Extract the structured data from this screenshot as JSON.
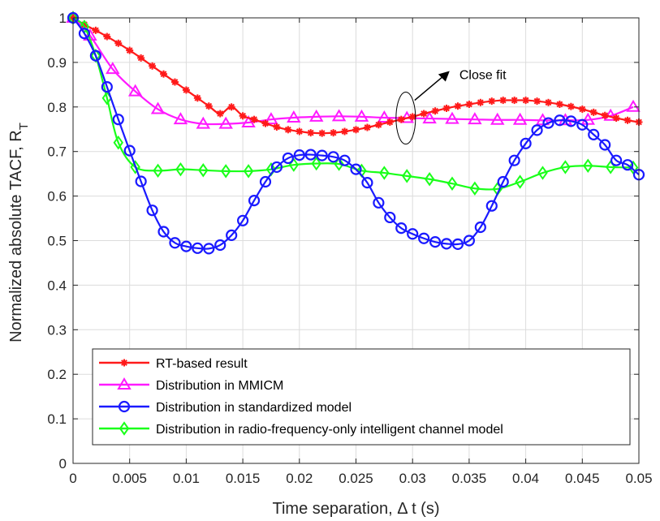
{
  "chart_data": {
    "type": "line",
    "title": "",
    "xlabel": "Time separation, Δ t (s)",
    "ylabel": "Normalized absolute TACF, R",
    "ylabel_subscript": "T",
    "xlim": [
      0,
      0.05
    ],
    "ylim": [
      0,
      1
    ],
    "xticks": [
      0,
      0.005,
      0.01,
      0.015,
      0.02,
      0.025,
      0.03,
      0.035,
      0.04,
      0.045,
      0.05
    ],
    "xtick_labels": [
      "0",
      "0.005",
      "0.01",
      "0.015",
      "0.02",
      "0.025",
      "0.03",
      "0.035",
      "0.04",
      "0.045",
      "0.05"
    ],
    "yticks": [
      0,
      0.1,
      0.2,
      0.3,
      0.4,
      0.5,
      0.6,
      0.7,
      0.8,
      0.9,
      1
    ],
    "ytick_labels": [
      "0",
      "0.1",
      "0.2",
      "0.3",
      "0.4",
      "0.5",
      "0.6",
      "0.7",
      "0.8",
      "0.9",
      "1"
    ],
    "grid": true,
    "legend_position": "bottom-left",
    "annotation": {
      "text": "Close fit",
      "x": 0.0294,
      "y": 0.775
    },
    "series": [
      {
        "name": "RT-based result",
        "color": "#ff1a1a",
        "marker": "asterisk",
        "x": [
          0,
          0.001,
          0.002,
          0.003,
          0.004,
          0.005,
          0.006,
          0.007,
          0.008,
          0.009,
          0.01,
          0.011,
          0.012,
          0.013,
          0.014,
          0.015,
          0.016,
          0.017,
          0.018,
          0.019,
          0.02,
          0.021,
          0.022,
          0.023,
          0.024,
          0.025,
          0.026,
          0.027,
          0.028,
          0.029,
          0.03,
          0.031,
          0.032,
          0.033,
          0.034,
          0.035,
          0.036,
          0.037,
          0.038,
          0.039,
          0.04,
          0.041,
          0.042,
          0.043,
          0.044,
          0.045,
          0.046,
          0.047,
          0.048,
          0.049,
          0.05
        ],
        "values": [
          1.0,
          0.985,
          0.972,
          0.958,
          0.943,
          0.927,
          0.91,
          0.892,
          0.874,
          0.856,
          0.838,
          0.82,
          0.802,
          0.785,
          0.8,
          0.78,
          0.772,
          0.763,
          0.755,
          0.749,
          0.745,
          0.742,
          0.741,
          0.742,
          0.745,
          0.749,
          0.754,
          0.76,
          0.766,
          0.772,
          0.778,
          0.785,
          0.791,
          0.797,
          0.802,
          0.806,
          0.81,
          0.813,
          0.815,
          0.815,
          0.815,
          0.813,
          0.81,
          0.806,
          0.801,
          0.795,
          0.788,
          0.781,
          0.775,
          0.77,
          0.766
        ]
      },
      {
        "name": "Distribution in MMICM",
        "color": "#ff1aff",
        "marker": "triangle",
        "x": [
          0,
          0.0015,
          0.0035,
          0.0055,
          0.0075,
          0.0095,
          0.0115,
          0.0135,
          0.0155,
          0.0175,
          0.0195,
          0.0215,
          0.0235,
          0.0255,
          0.0275,
          0.0295,
          0.0315,
          0.0335,
          0.0355,
          0.0375,
          0.0395,
          0.0415,
          0.0435,
          0.0455,
          0.0475,
          0.0495
        ],
        "values": [
          1.0,
          0.96,
          0.885,
          0.835,
          0.795,
          0.772,
          0.762,
          0.762,
          0.765,
          0.772,
          0.776,
          0.778,
          0.779,
          0.778,
          0.776,
          0.775,
          0.774,
          0.773,
          0.772,
          0.771,
          0.771,
          0.77,
          0.77,
          0.771,
          0.78,
          0.8
        ]
      },
      {
        "name": "Distribution in standardized model",
        "color": "#1a1aff",
        "marker": "circle",
        "x": [
          0,
          0.001,
          0.002,
          0.003,
          0.004,
          0.005,
          0.006,
          0.007,
          0.008,
          0.009,
          0.01,
          0.011,
          0.012,
          0.013,
          0.014,
          0.015,
          0.016,
          0.017,
          0.018,
          0.019,
          0.02,
          0.021,
          0.022,
          0.023,
          0.024,
          0.025,
          0.026,
          0.027,
          0.028,
          0.029,
          0.03,
          0.031,
          0.032,
          0.033,
          0.034,
          0.035,
          0.036,
          0.037,
          0.038,
          0.039,
          0.04,
          0.041,
          0.042,
          0.043,
          0.044,
          0.045,
          0.046,
          0.047,
          0.048,
          0.049,
          0.05
        ],
        "values": [
          1.0,
          0.965,
          0.915,
          0.845,
          0.772,
          0.702,
          0.633,
          0.568,
          0.52,
          0.495,
          0.487,
          0.483,
          0.482,
          0.49,
          0.512,
          0.545,
          0.59,
          0.632,
          0.665,
          0.685,
          0.692,
          0.693,
          0.691,
          0.688,
          0.68,
          0.66,
          0.63,
          0.585,
          0.552,
          0.528,
          0.515,
          0.505,
          0.497,
          0.493,
          0.492,
          0.5,
          0.53,
          0.578,
          0.632,
          0.68,
          0.718,
          0.748,
          0.764,
          0.77,
          0.768,
          0.76,
          0.738,
          0.715,
          0.68,
          0.67,
          0.648
        ]
      },
      {
        "name": "Distribution in radio-frequency-only intelligent channel model",
        "color": "#1aff1a",
        "marker": "diamond",
        "x": [
          0,
          0.001,
          0.002,
          0.003,
          0.004,
          0.0055,
          0.0075,
          0.0095,
          0.0115,
          0.0135,
          0.0155,
          0.0175,
          0.0195,
          0.0215,
          0.0235,
          0.0255,
          0.0275,
          0.0295,
          0.0315,
          0.0335,
          0.0355,
          0.0375,
          0.0395,
          0.0415,
          0.0435,
          0.0455,
          0.0475,
          0.0495
        ],
        "values": [
          1.0,
          0.98,
          0.915,
          0.82,
          0.72,
          0.665,
          0.657,
          0.66,
          0.658,
          0.656,
          0.656,
          0.66,
          0.67,
          0.673,
          0.672,
          0.657,
          0.652,
          0.645,
          0.638,
          0.628,
          0.617,
          0.616,
          0.632,
          0.652,
          0.665,
          0.668,
          0.665,
          0.664
        ]
      }
    ]
  }
}
